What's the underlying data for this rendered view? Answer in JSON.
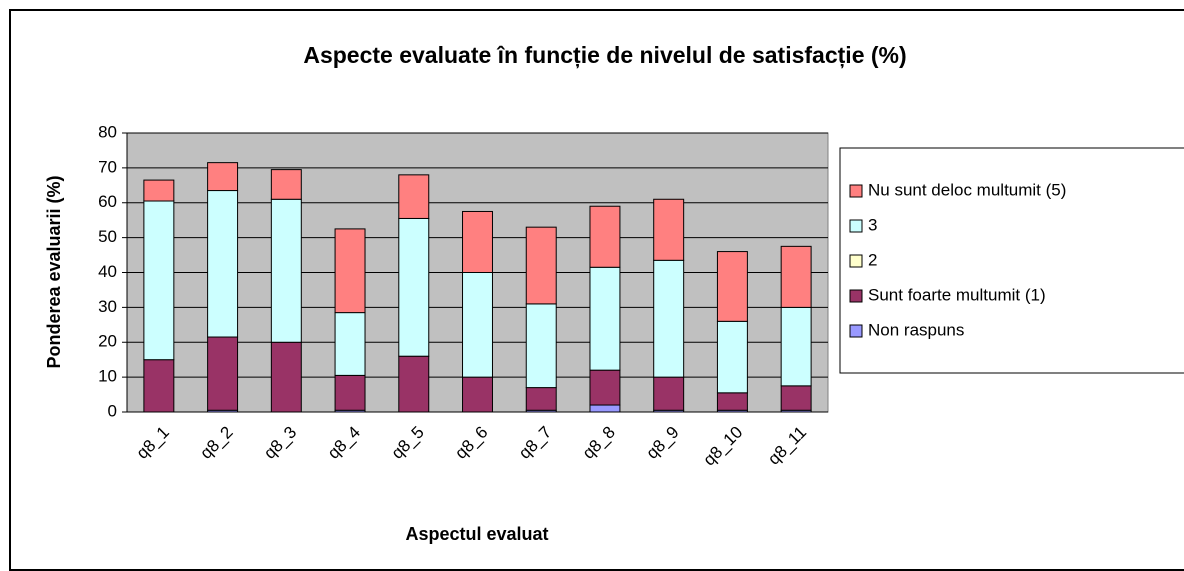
{
  "chart_data": {
    "type": "bar",
    "stacked": true,
    "title": "Aspecte evaluate în funcție de nivelul de satisfacție (%)",
    "x_label": "Aspectul evaluat",
    "y_label": "Ponderea evaluarii (%)",
    "categories": [
      "q8_1",
      "q8_2",
      "q8_3",
      "q8_4",
      "q8_5",
      "q8_6",
      "q8_7",
      "q8_8",
      "q8_9",
      "q8_10",
      "q8_11"
    ],
    "series": [
      {
        "name": "Non raspuns",
        "color": "#9999ff",
        "values": [
          0,
          0.5,
          0,
          0.5,
          0,
          0,
          0.5,
          2,
          0.5,
          0.5,
          0.5
        ]
      },
      {
        "name": "Sunt foarte multumit (1)",
        "color": "#993366",
        "values": [
          15,
          21,
          20,
          10,
          16,
          10,
          6.5,
          10,
          9.5,
          5,
          7
        ]
      },
      {
        "name": "2",
        "color": "#ffffcc",
        "values": [
          0,
          0,
          0,
          0,
          0,
          0,
          0,
          0,
          0,
          0,
          0
        ]
      },
      {
        "name": "3",
        "color": "#ccffff",
        "values": [
          45.5,
          42,
          41,
          18,
          39.5,
          30,
          24,
          29.5,
          33.5,
          20.5,
          22.5
        ]
      },
      {
        "name": "Nu sunt deloc multumit (5)",
        "color": "#ff8080",
        "values": [
          6,
          8,
          8.5,
          24,
          12.5,
          17.5,
          22,
          17.5,
          17.5,
          20,
          17.5
        ]
      }
    ],
    "ylim": [
      0,
      80
    ],
    "yticks": [
      0,
      10,
      20,
      30,
      40,
      50,
      60,
      70,
      80
    ],
    "grid": true,
    "legend": "right",
    "plot_background": "#c0c0c0"
  }
}
